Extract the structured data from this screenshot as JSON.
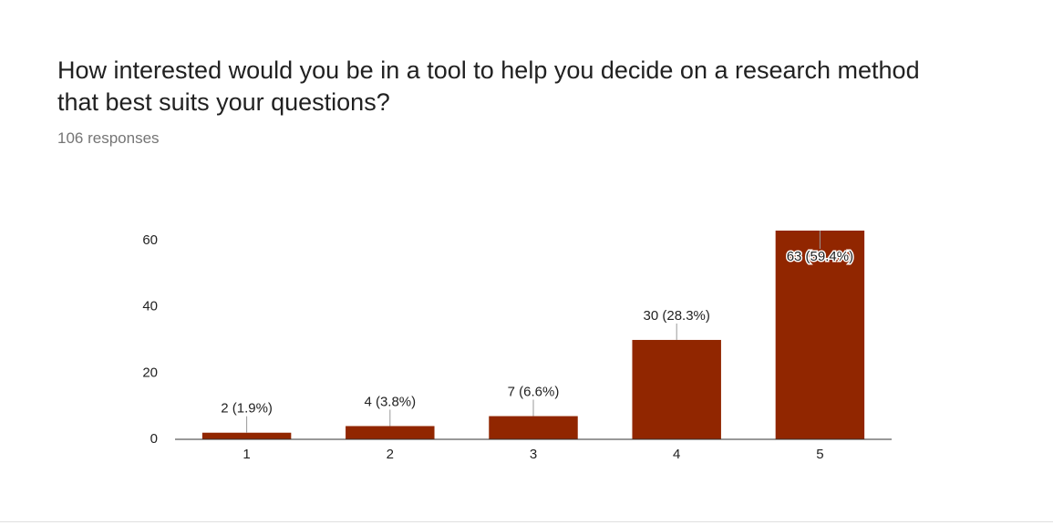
{
  "chart_data": {
    "type": "bar",
    "title": "How interested would you be in a tool to help you decide on a research method that best suits your questions?",
    "subtitle": "106 responses",
    "categories": [
      "1",
      "2",
      "3",
      "4",
      "5"
    ],
    "values": [
      2,
      4,
      7,
      30,
      63
    ],
    "value_labels": [
      "2 (1.9%)",
      "4 (3.8%)",
      "7 (6.6%)",
      "30 (28.3%)",
      "63 (59.4%)"
    ],
    "color": "#912600",
    "ylim": [
      0,
      63
    ],
    "yticks": [
      0,
      20,
      40,
      60
    ],
    "grid": false
  }
}
